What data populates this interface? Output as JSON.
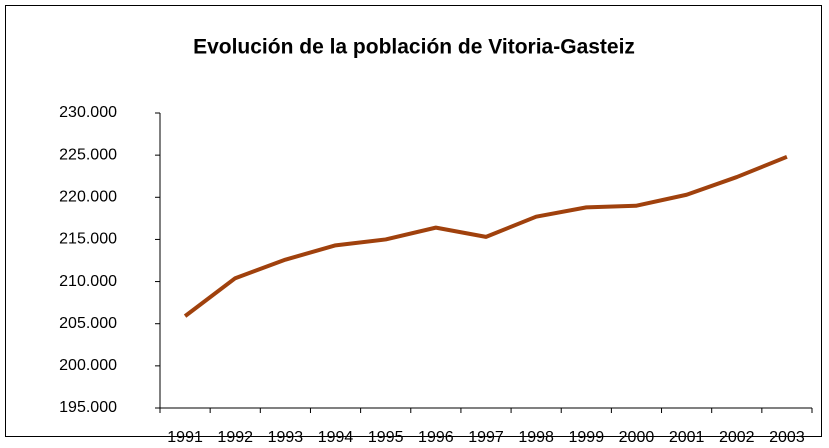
{
  "chart_data": {
    "type": "line",
    "title": "Evolución de la población de Vitoria-Gasteiz",
    "categories": [
      "1991",
      "1992",
      "1993",
      "1994",
      "1995",
      "1996",
      "1997",
      "1998",
      "1999",
      "2000",
      "2001",
      "2002",
      "2003"
    ],
    "values": [
      205900,
      210400,
      212600,
      214300,
      215000,
      216400,
      215300,
      217700,
      218800,
      219000,
      220300,
      222400,
      224800
    ],
    "color": "#a0410d",
    "ylim": [
      195000,
      230000
    ],
    "yticks": [
      {
        "value": 195000,
        "label": "195.000"
      },
      {
        "value": 200000,
        "label": "200.000"
      },
      {
        "value": 205000,
        "label": "205.000"
      },
      {
        "value": 210000,
        "label": "210.000"
      },
      {
        "value": 215000,
        "label": "215.000"
      },
      {
        "value": 220000,
        "label": "220.000"
      },
      {
        "value": 225000,
        "label": "225.000"
      },
      {
        "value": 230000,
        "label": "230.000"
      }
    ],
    "grid": false
  }
}
